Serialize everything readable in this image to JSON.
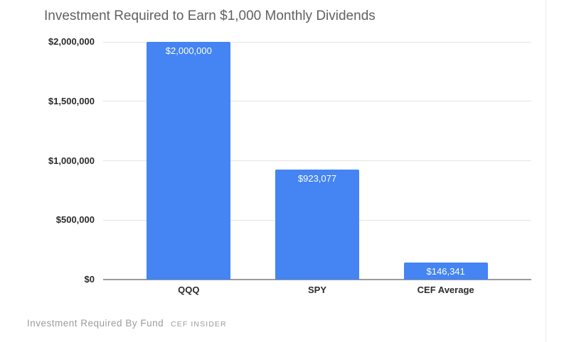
{
  "chart": {
    "title": "Investment Required to Earn $1,000 Monthly Dividends"
  },
  "chart_data": {
    "type": "bar",
    "title": "Investment Required to Earn $1,000 Monthly Dividends",
    "categories": [
      "QQQ",
      "SPY",
      "CEF Average"
    ],
    "values": [
      2000000,
      923077,
      146341
    ],
    "value_labels": [
      "$2,000,000",
      "$923,077",
      "$146,341"
    ],
    "xlabel": "",
    "ylabel": "",
    "ylim": [
      0,
      2000000
    ],
    "yticks": [
      0,
      500000,
      1000000,
      1500000,
      2000000
    ],
    "ytick_labels": [
      "$0",
      "$500,000",
      "$1,000,000",
      "$1,500,000",
      "$2,000,000"
    ],
    "grid": true,
    "legend": false,
    "bar_color": "#4484f3",
    "value_label_color": "#ffffff",
    "gridline_color": "#e4e4e4",
    "axis_line_color": "#9b9b9b"
  },
  "footer": {
    "caption": "Investment Required By Fund",
    "brand": "CEF INSIDER"
  }
}
